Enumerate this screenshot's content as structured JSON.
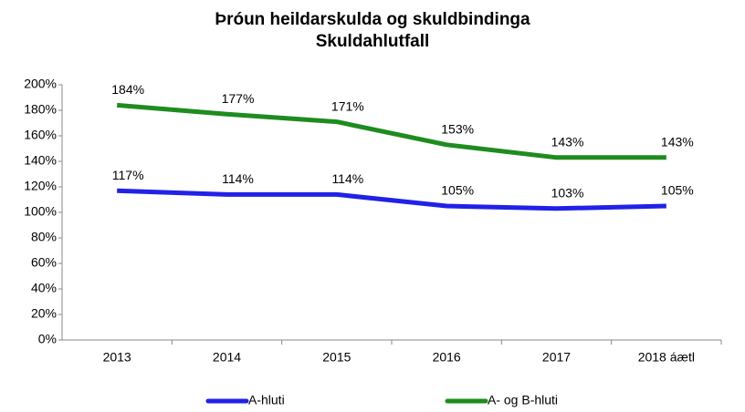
{
  "chart_data": {
    "type": "line",
    "title": "Þróun heildarskulda og skuldbindinga",
    "subtitle": "Skuldahlutfall",
    "categories": [
      "2013",
      "2014",
      "2015",
      "2016",
      "2017",
      "2018 áætl"
    ],
    "series": [
      {
        "name": "A-hluti",
        "color": "#2121e8",
        "values": [
          117,
          114,
          114,
          105,
          103,
          105
        ],
        "value_labels": [
          "117%",
          "114%",
          "114%",
          "105%",
          "103%",
          "105%"
        ]
      },
      {
        "name": "A- og B-hluti",
        "color": "#1e8c1e",
        "values": [
          184,
          177,
          171,
          153,
          143,
          143
        ],
        "value_labels": [
          "184%",
          "177%",
          "171%",
          "153%",
          "143%",
          "143%"
        ]
      }
    ],
    "ylim": [
      0,
      200
    ],
    "yticks": [
      {
        "value": 0,
        "label": "0%"
      },
      {
        "value": 20,
        "label": "20%"
      },
      {
        "value": 40,
        "label": "40%"
      },
      {
        "value": 60,
        "label": "60%"
      },
      {
        "value": 80,
        "label": "80%"
      },
      {
        "value": 100,
        "label": "100%"
      },
      {
        "value": 120,
        "label": "120%"
      },
      {
        "value": 140,
        "label": "140%"
      },
      {
        "value": 160,
        "label": "160%"
      },
      {
        "value": 180,
        "label": "180%"
      },
      {
        "value": 200,
        "label": "200%"
      }
    ],
    "grid": false,
    "legend": "bottom"
  }
}
